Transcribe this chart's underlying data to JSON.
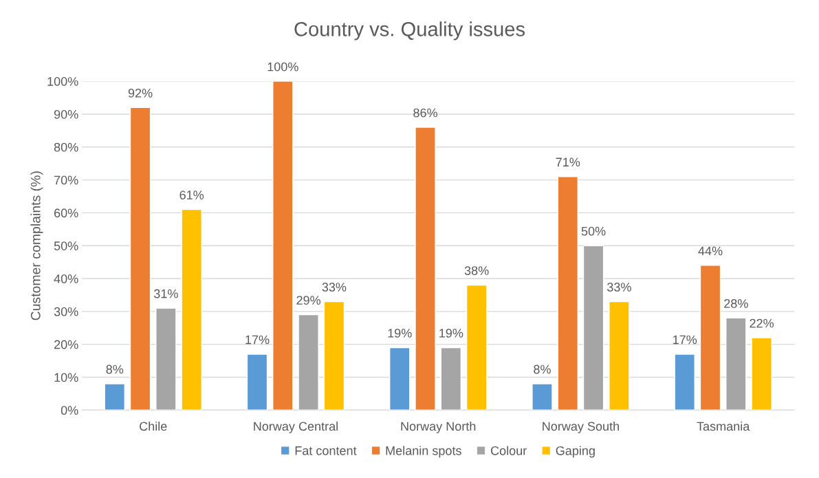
{
  "chart_data": {
    "type": "bar",
    "title": "Country vs. Quality issues",
    "ylabel": "Customer complaints (%)",
    "categories": [
      "Chile",
      "Norway Central",
      "Norway North",
      "Norway South",
      "Tasmania"
    ],
    "series": [
      {
        "name": "Fat content",
        "color": "#5b9bd5",
        "values": [
          8,
          17,
          19,
          8,
          17
        ],
        "value_labels": [
          "8%",
          "17%",
          "19%",
          "8%",
          "17%"
        ]
      },
      {
        "name": "Melanin spots",
        "color": "#ed7d31",
        "values": [
          92,
          100,
          86,
          71,
          44
        ],
        "value_labels": [
          "92%",
          "100%",
          "86%",
          "71%",
          "44%"
        ]
      },
      {
        "name": "Colour",
        "color": "#a5a5a5",
        "values": [
          31,
          29,
          19,
          50,
          28
        ],
        "value_labels": [
          "31%",
          "29%",
          "19%",
          "50%",
          "28%"
        ]
      },
      {
        "name": "Gaping",
        "color": "#ffc000",
        "values": [
          61,
          33,
          38,
          33,
          22
        ],
        "value_labels": [
          "61%",
          "33%",
          "38%",
          "33%",
          "22%"
        ]
      }
    ],
    "ylim": [
      0,
      100
    ],
    "yticks": [
      {
        "value": 0,
        "label": "0%"
      },
      {
        "value": 10,
        "label": "10%"
      },
      {
        "value": 20,
        "label": "20%"
      },
      {
        "value": 30,
        "label": "30%"
      },
      {
        "value": 40,
        "label": "40%"
      },
      {
        "value": 50,
        "label": "50%"
      },
      {
        "value": 60,
        "label": "60%"
      },
      {
        "value": 70,
        "label": "70%"
      },
      {
        "value": 80,
        "label": "80%"
      },
      {
        "value": 90,
        "label": "90%"
      },
      {
        "value": 100,
        "label": "100%"
      }
    ],
    "grid": "y",
    "legend": "bottom"
  }
}
